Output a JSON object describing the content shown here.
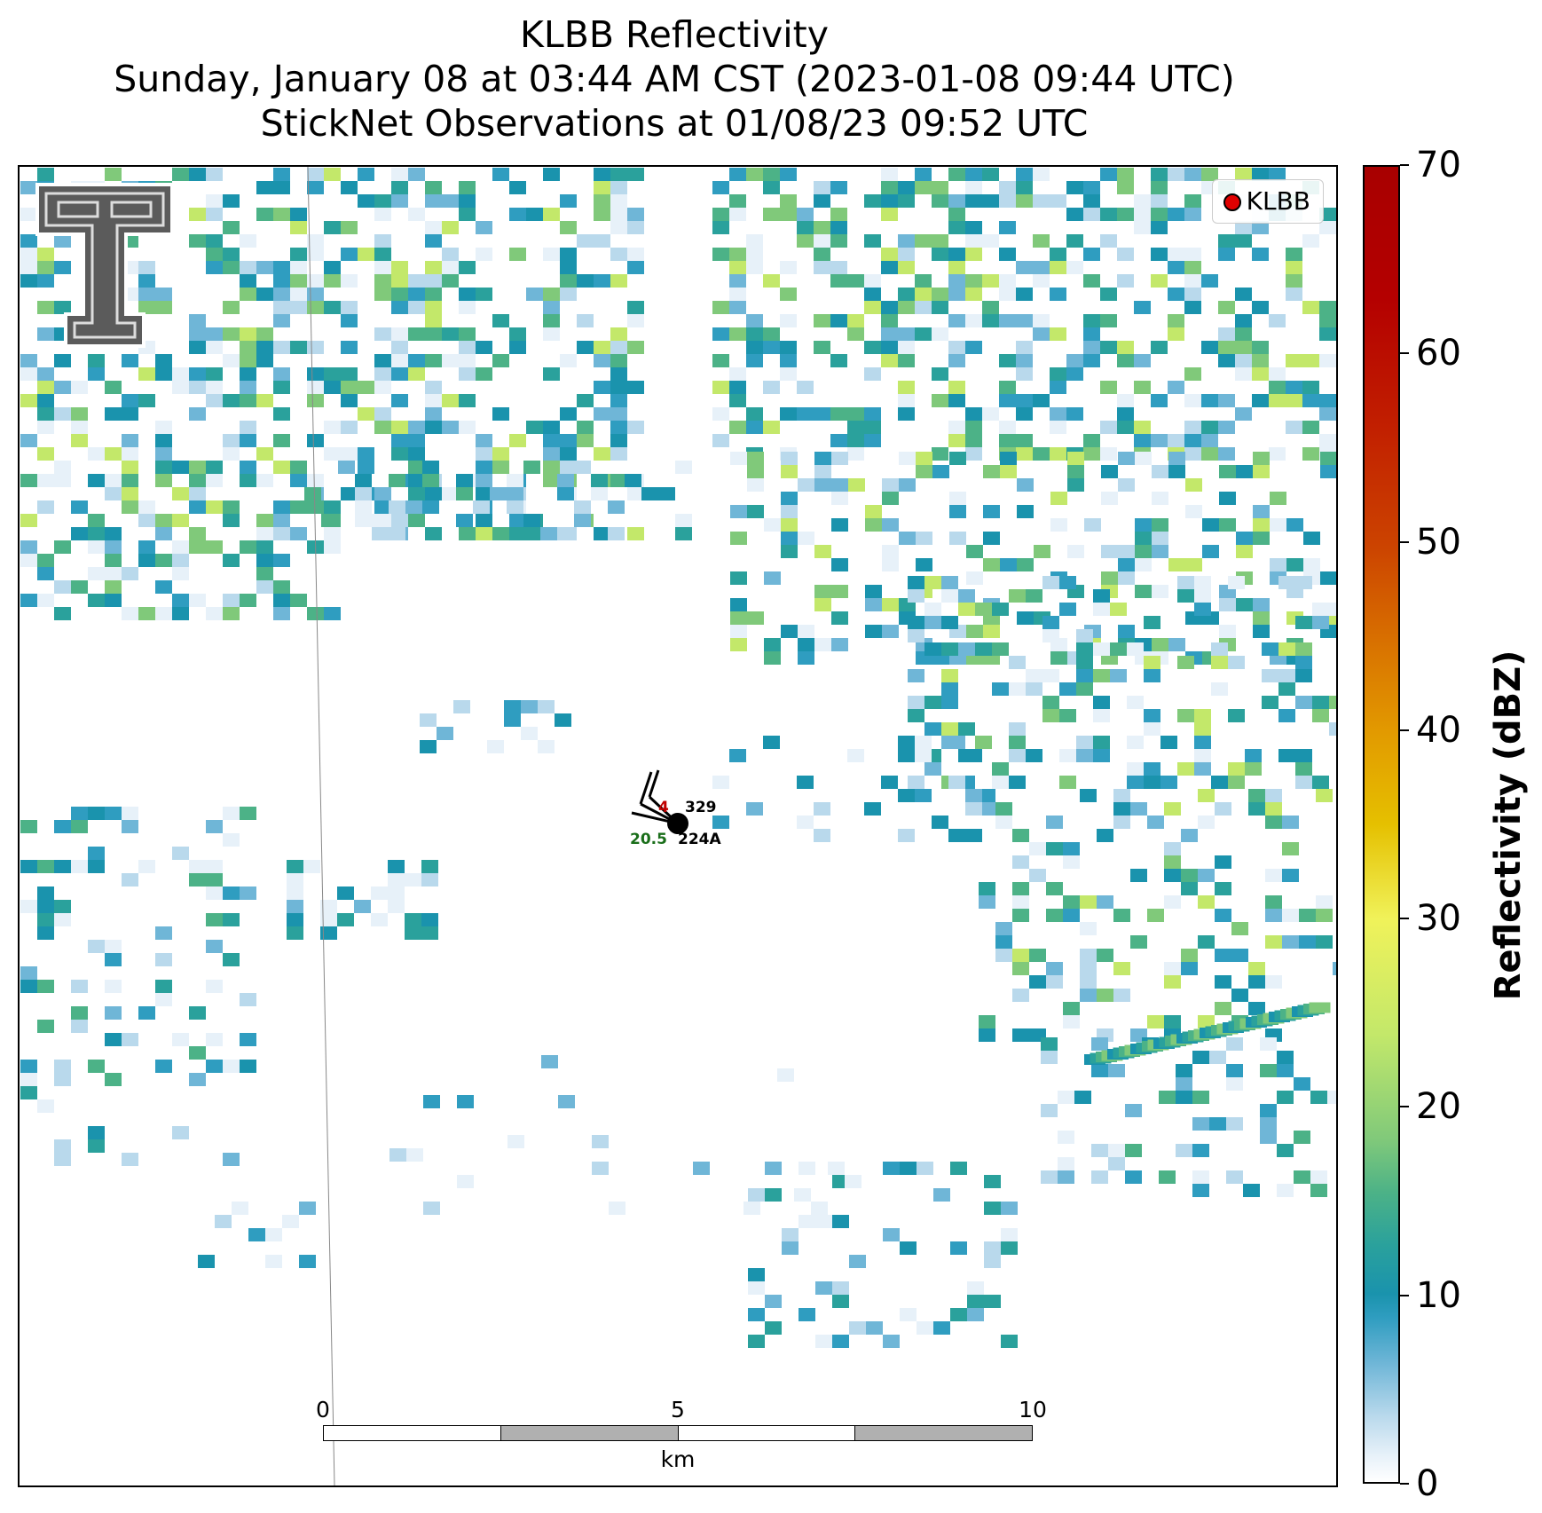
{
  "title": {
    "line1": "KLBB Reflectivity",
    "line2": "Sunday, January 08 at 03:44 AM CST (2023-01-08 09:44 UTC)",
    "line3": "StickNet Observations at 01/08/23 09:52 UTC"
  },
  "legend": {
    "label": "KLBB",
    "marker_color": "#e00000"
  },
  "station": {
    "id": "224A",
    "temperature": "4",
    "pressure": "329",
    "dewpoint": "20.5",
    "temp_color": "#c00000",
    "dew_color": "#1a6e1a"
  },
  "scale_bar": {
    "labels": [
      "0",
      "5",
      "10"
    ],
    "unit": "km"
  },
  "colorbar": {
    "label": "Reflectivity (dBZ)",
    "ticks": [
      "0",
      "10",
      "20",
      "30",
      "40",
      "50",
      "60",
      "70"
    ],
    "min": 0,
    "max": 70
  },
  "map_features": {
    "county_line": "thin gray line",
    "reflectivity_palette": [
      "#e7f1f9",
      "#b9d9ec",
      "#6fb6d7",
      "#2f9dc0",
      "#1a93ad",
      "#2aa19c",
      "#4cb287",
      "#80c97a",
      "#c3e86a"
    ]
  }
}
